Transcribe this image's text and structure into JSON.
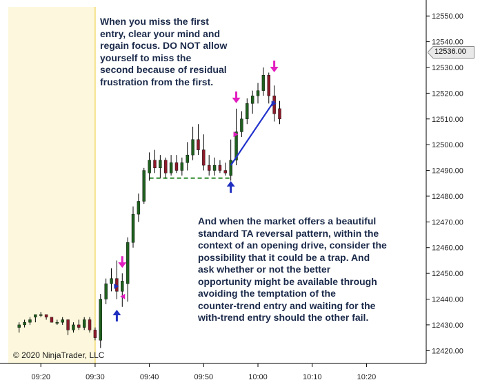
{
  "chart_data": {
    "type": "candlestick",
    "ylim": [
      12415,
      12553
    ],
    "yticks": [
      12420,
      12430,
      12440,
      12450,
      12460,
      12470,
      12480,
      12490,
      12500,
      12510,
      12520,
      12530,
      12540,
      12550
    ],
    "ytick_labels": [
      "12420.00",
      "12430.00",
      "12440.00",
      "12450.00",
      "12460.00",
      "12470.00",
      "12480.00",
      "12490.00",
      "12500.00",
      "12510.00",
      "12520.00",
      "12530.00",
      "12540.00",
      "12550.00"
    ],
    "xlim": [
      "09:14",
      "10:31"
    ],
    "xticks": [
      "09:20",
      "09:30",
      "09:40",
      "09:50",
      "10:00",
      "10:10",
      "10:20"
    ],
    "current_price": "12536.00",
    "session_shade_until": "09:30",
    "bars": [
      {
        "t": "09:16",
        "o": 12429,
        "h": 12431,
        "l": 12427,
        "c": 12430
      },
      {
        "t": "09:17",
        "o": 12430,
        "h": 12432,
        "l": 12429,
        "c": 12431
      },
      {
        "t": "09:18",
        "o": 12431,
        "h": 12433,
        "l": 12430,
        "c": 12432
      },
      {
        "t": "09:19",
        "o": 12433,
        "h": 12434,
        "l": 12431,
        "c": 12434
      },
      {
        "t": "09:20",
        "o": 12434,
        "h": 12435,
        "l": 12433,
        "c": 12434
      },
      {
        "t": "09:21",
        "o": 12434,
        "h": 12434,
        "l": 12432,
        "c": 12433
      },
      {
        "t": "09:22",
        "o": 12433,
        "h": 12433,
        "l": 12431,
        "c": 12431
      },
      {
        "t": "09:23",
        "o": 12431,
        "h": 12432,
        "l": 12430,
        "c": 12431
      },
      {
        "t": "09:24",
        "o": 12431,
        "h": 12433,
        "l": 12430,
        "c": 12432
      },
      {
        "t": "09:25",
        "o": 12432,
        "h": 12432,
        "l": 12426,
        "c": 12428
      },
      {
        "t": "09:26",
        "o": 12428,
        "h": 12431,
        "l": 12427,
        "c": 12430
      },
      {
        "t": "09:27",
        "o": 12430,
        "h": 12432,
        "l": 12428,
        "c": 12429
      },
      {
        "t": "09:28",
        "o": 12429,
        "h": 12433,
        "l": 12428,
        "c": 12432
      },
      {
        "t": "09:29",
        "o": 12432,
        "h": 12433,
        "l": 12427,
        "c": 12428
      },
      {
        "t": "09:30",
        "o": 12428,
        "h": 12429,
        "l": 12424,
        "c": 12425
      },
      {
        "t": "09:31",
        "o": 12424,
        "h": 12442,
        "l": 12421,
        "c": 12440
      },
      {
        "t": "09:32",
        "o": 12440,
        "h": 12448,
        "l": 12438,
        "c": 12446
      },
      {
        "t": "09:33",
        "o": 12446,
        "h": 12452,
        "l": 12443,
        "c": 12448
      },
      {
        "t": "09:34",
        "o": 12448,
        "h": 12455,
        "l": 12440,
        "c": 12443
      },
      {
        "t": "09:35",
        "o": 12443,
        "h": 12450,
        "l": 12437,
        "c": 12447
      },
      {
        "t": "09:36",
        "o": 12446,
        "h": 12464,
        "l": 12439,
        "c": 12462
      },
      {
        "t": "09:37",
        "o": 12462,
        "h": 12476,
        "l": 12460,
        "c": 12473
      },
      {
        "t": "09:38",
        "o": 12473,
        "h": 12481,
        "l": 12470,
        "c": 12478
      },
      {
        "t": "09:39",
        "o": 12478,
        "h": 12491,
        "l": 12477,
        "c": 12490
      },
      {
        "t": "09:40",
        "o": 12489,
        "h": 12497,
        "l": 12486,
        "c": 12494
      },
      {
        "t": "09:41",
        "o": 12494,
        "h": 12498,
        "l": 12489,
        "c": 12491
      },
      {
        "t": "09:42",
        "o": 12491,
        "h": 12496,
        "l": 12487,
        "c": 12494
      },
      {
        "t": "09:43",
        "o": 12494,
        "h": 12495,
        "l": 12487,
        "c": 12489
      },
      {
        "t": "09:44",
        "o": 12489,
        "h": 12496,
        "l": 12488,
        "c": 12493
      },
      {
        "t": "09:45",
        "o": 12493,
        "h": 12496,
        "l": 12489,
        "c": 12490
      },
      {
        "t": "09:46",
        "o": 12490,
        "h": 12495,
        "l": 12488,
        "c": 12493
      },
      {
        "t": "09:47",
        "o": 12493,
        "h": 12501,
        "l": 12490,
        "c": 12496
      },
      {
        "t": "09:48",
        "o": 12496,
        "h": 12507,
        "l": 12494,
        "c": 12502
      },
      {
        "t": "09:49",
        "o": 12502,
        "h": 12508,
        "l": 12496,
        "c": 12498
      },
      {
        "t": "09:50",
        "o": 12498,
        "h": 12504,
        "l": 12490,
        "c": 12492
      },
      {
        "t": "09:51",
        "o": 12492,
        "h": 12496,
        "l": 12488,
        "c": 12490
      },
      {
        "t": "09:52",
        "o": 12490,
        "h": 12495,
        "l": 12488,
        "c": 12492
      },
      {
        "t": "09:53",
        "o": 12492,
        "h": 12494,
        "l": 12489,
        "c": 12490
      },
      {
        "t": "09:54",
        "o": 12490,
        "h": 12493,
        "l": 12488,
        "c": 12489
      },
      {
        "t": "09:55",
        "o": 12488,
        "h": 12502,
        "l": 12486,
        "c": 12494
      },
      {
        "t": "09:56",
        "o": 12494,
        "h": 12514,
        "l": 12492,
        "c": 12505
      },
      {
        "t": "09:57",
        "o": 12505,
        "h": 12513,
        "l": 12503,
        "c": 12510
      },
      {
        "t": "09:58",
        "o": 12510,
        "h": 12518,
        "l": 12508,
        "c": 12516
      },
      {
        "t": "09:59",
        "o": 12516,
        "h": 12521,
        "l": 12512,
        "c": 12519
      },
      {
        "t": "10:00",
        "o": 12519,
        "h": 12524,
        "l": 12516,
        "c": 12521
      },
      {
        "t": "10:01",
        "o": 12521,
        "h": 12530,
        "l": 12519,
        "c": 12527
      },
      {
        "t": "10:02",
        "o": 12527,
        "h": 12528,
        "l": 12516,
        "c": 12519
      },
      {
        "t": "10:03",
        "o": 12519,
        "h": 12523,
        "l": 12509,
        "c": 12512
      },
      {
        "t": "10:04",
        "o": 12514,
        "h": 12517,
        "l": 12508,
        "c": 12510
      }
    ],
    "reference_level": {
      "y": 12487,
      "from": "09:40",
      "to": "09:55",
      "style": "dashed",
      "color": "#2e8b2e"
    },
    "trend_line": {
      "from": {
        "t": "09:55",
        "y": 12492
      },
      "to": {
        "t": "10:03",
        "y": 12517
      },
      "color": "#2233cc"
    },
    "markers": [
      {
        "kind": "arrow-up",
        "t": "09:34",
        "y": 12434,
        "color": "#1f2fbf"
      },
      {
        "kind": "arrow-down",
        "t": "09:35",
        "y": 12454,
        "color": "#e21ec0"
      },
      {
        "kind": "triangle-right",
        "t": "09:34",
        "y": 12445,
        "color": "#1f2fbf"
      },
      {
        "kind": "triangle-left",
        "t": "09:35",
        "y": 12441,
        "color": "#e21ec0"
      },
      {
        "kind": "arrow-up",
        "t": "09:55",
        "y": 12484,
        "color": "#1f2fbf"
      },
      {
        "kind": "arrow-down",
        "t": "09:56",
        "y": 12518,
        "color": "#e21ec0"
      },
      {
        "kind": "triangle-right",
        "t": "09:56",
        "y": 12504,
        "color": "#e21ec0"
      },
      {
        "kind": "arrow-down",
        "t": "10:03",
        "y": 12530,
        "color": "#e21ec0"
      },
      {
        "kind": "triangle-right",
        "t": "10:03",
        "y": 12516,
        "color": "#1f2fbf"
      }
    ],
    "colors": {
      "up_body": "#1f5f1f",
      "down_body": "#8b1a2a",
      "wick": "#000000",
      "session_shade": "#fdf8dd",
      "session_line": "#f2d86b",
      "axis": "#000000",
      "price_tag_fill": "#e9e9e9",
      "price_tag_border": "#8a8a8a"
    }
  },
  "annotations": {
    "top": [
      "When you miss the first",
      "entry, clear your mind and",
      "regain focus. DO NOT allow",
      "yourself to miss the",
      "second because of residual",
      "frustration from the first."
    ],
    "bottom": [
      "And when the market offers a beautiful",
      "standard TA reversal pattern, within the",
      "context of an opening drive, consider the",
      "possibility that it could be a trap. And",
      "ask whether or not the better",
      "opportunity might be available through",
      "avoiding the temptation of the",
      "counter-trend entry and waiting for the",
      "with-trend entry should the other fail."
    ]
  },
  "copyright": "© 2020 NinjaTrader, LLC"
}
